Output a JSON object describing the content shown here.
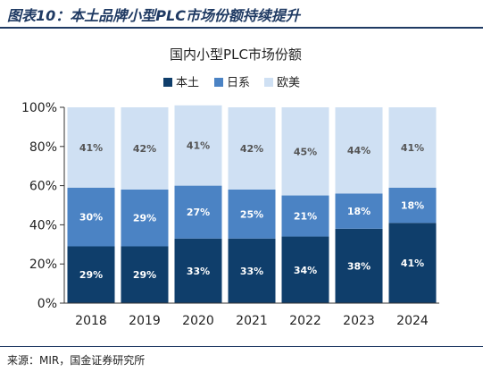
{
  "figure": {
    "title": "图表10：本土品牌小型PLC市场份额持续提升",
    "source_label": "来源：",
    "source_text": "MIR，国金证券研究所"
  },
  "colors": {
    "header": "#1f3a63",
    "series": [
      "#0f3e6b",
      "#4b83c4",
      "#cfe0f3"
    ]
  },
  "chart_data": {
    "type": "bar",
    "stacked": true,
    "title": "国内小型PLC市场份额",
    "categories": [
      "2018",
      "2019",
      "2020",
      "2021",
      "2022",
      "2023",
      "2024"
    ],
    "series": [
      {
        "name": "本土",
        "values": [
          29,
          29,
          33,
          33,
          34,
          38,
          41
        ],
        "labels": [
          "29%",
          "29%",
          "33%",
          "33%",
          "34%",
          "38%",
          "41%"
        ]
      },
      {
        "name": "日系",
        "values": [
          30,
          29,
          27,
          25,
          21,
          18,
          18
        ],
        "labels": [
          "30%",
          "29%",
          "27%",
          "25%",
          "21%",
          "18%",
          "18%"
        ]
      },
      {
        "name": "欧美",
        "values": [
          41,
          42,
          41,
          42,
          45,
          44,
          41
        ],
        "labels": [
          "41%",
          "42%",
          "41%",
          "42%",
          "45%",
          "44%",
          "41%"
        ]
      }
    ],
    "ylim": [
      0,
      100
    ],
    "yticks": [
      0,
      20,
      40,
      60,
      80,
      100
    ],
    "ytick_labels": [
      "0%",
      "20%",
      "40%",
      "60%",
      "80%",
      "100%"
    ],
    "legend_position": "top",
    "grid": false
  }
}
